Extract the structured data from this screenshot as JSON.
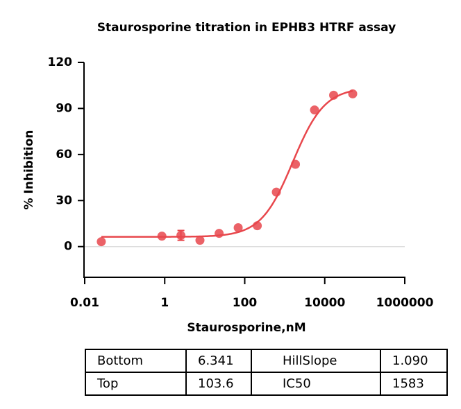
{
  "chart_data": {
    "type": "scatter",
    "title": "Staurosporine titration in EPHB3 HTRF assay",
    "x_label": "Staurosporine,nM",
    "y_label": "% Inhibition",
    "x_scale": "log",
    "xlim": [
      0.01,
      1000000
    ],
    "xticks": [
      0.01,
      1,
      100,
      10000,
      1000000
    ],
    "ylim": [
      -20,
      120
    ],
    "yticks": [
      0,
      30,
      60,
      90,
      120
    ],
    "color": "#e8474c",
    "x": [
      0.026,
      0.85,
      2.54,
      7.6,
      22.9,
      68.6,
      206,
      617,
      1852,
      5556,
      16667,
      50000
    ],
    "values": [
      3.2,
      6.8,
      7.3,
      4.1,
      8.6,
      12.3,
      13.6,
      35.5,
      53.6,
      89,
      98.6,
      99.5
    ],
    "errors": [
      null,
      null,
      3.2,
      null,
      null,
      null,
      null,
      null,
      null,
      null,
      null,
      null
    ]
  },
  "table": {
    "rows": [
      [
        "Bottom",
        6.341,
        "HillSlope",
        {
          "value": 1.09,
          "label": "1.090"
        }
      ],
      [
        "Top",
        103.6,
        "IC50",
        1583
      ]
    ]
  }
}
